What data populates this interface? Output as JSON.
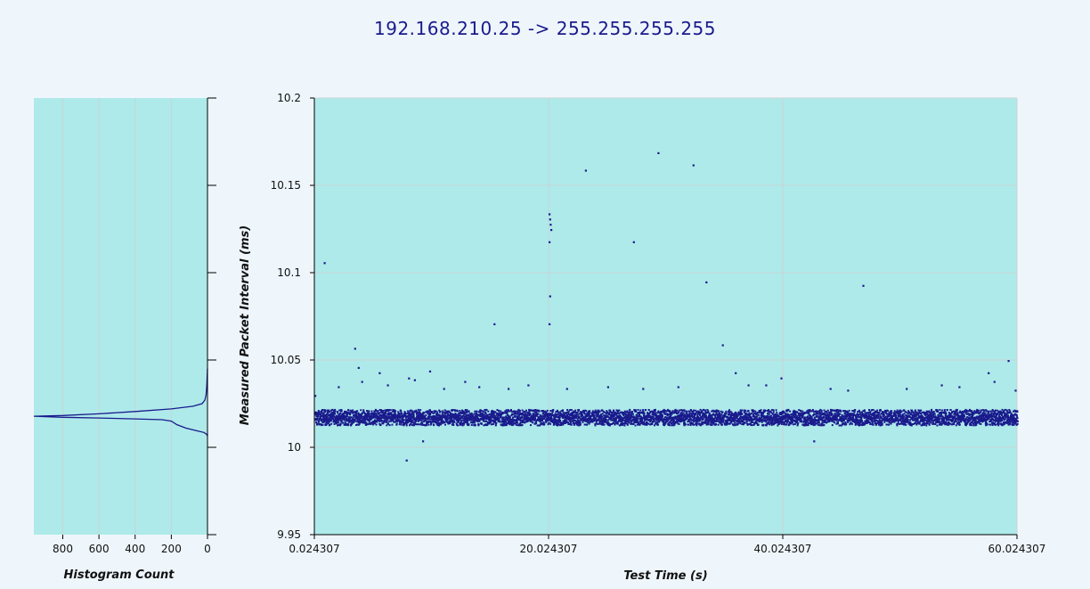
{
  "title": "192.168.210.25 -> 255.255.255.255",
  "colors": {
    "plot_bg": "#aeeaea",
    "series": "#1a1a8c",
    "grid": "#c8d4d4"
  },
  "chart_data": [
    {
      "type": "line",
      "name": "histogram",
      "xlabel": "Histogram Count",
      "x_ticks": [
        800,
        600,
        400,
        200,
        0
      ],
      "xlim": [
        0,
        960
      ],
      "x_reversed": true,
      "ylim": [
        9.95,
        10.2
      ],
      "curve": [
        [
          0,
          10.045
        ],
        [
          2,
          10.04
        ],
        [
          4,
          10.035
        ],
        [
          8,
          10.03
        ],
        [
          15,
          10.027
        ],
        [
          30,
          10.025
        ],
        [
          80,
          10.0235
        ],
        [
          200,
          10.022
        ],
        [
          400,
          10.0205
        ],
        [
          600,
          10.0192
        ],
        [
          800,
          10.0182
        ],
        [
          960,
          10.0178
        ],
        [
          800,
          10.0172
        ],
        [
          600,
          10.0168
        ],
        [
          400,
          10.0163
        ],
        [
          250,
          10.0158
        ],
        [
          200,
          10.015
        ],
        [
          170,
          10.013
        ],
        [
          120,
          10.011
        ],
        [
          60,
          10.0095
        ],
        [
          20,
          10.0085
        ],
        [
          5,
          10.0075
        ],
        [
          0,
          10.0065
        ]
      ]
    },
    {
      "type": "scatter",
      "name": "intervals",
      "xlabel": "Test Time (s)",
      "ylabel": "Measured Packet Interval (ms)",
      "xlim": [
        0.024307,
        60.024307
      ],
      "ylim": [
        9.95,
        10.2
      ],
      "x_ticks": [
        "0.024307",
        "20.024307",
        "40.024307",
        "60.024307"
      ],
      "y_ticks": [
        "9.95",
        "10",
        "10.05",
        "10.1",
        "10.15",
        "10.2"
      ],
      "band": {
        "center": 10.0175,
        "spread": 0.0045
      },
      "outliers": [
        [
          0.0,
          10.03
        ],
        [
          0.8,
          10.106
        ],
        [
          3.4,
          10.057
        ],
        [
          3.7,
          10.046
        ],
        [
          4.0,
          10.038
        ],
        [
          7.8,
          9.993
        ],
        [
          8.0,
          10.04
        ],
        [
          9.2,
          10.004
        ],
        [
          9.8,
          10.044
        ],
        [
          15.3,
          10.071
        ],
        [
          20.0,
          10.134
        ],
        [
          20.05,
          10.131
        ],
        [
          20.1,
          10.128
        ],
        [
          20.15,
          10.125
        ],
        [
          20.0,
          10.118
        ],
        [
          20.05,
          10.087
        ],
        [
          20.0,
          10.071
        ],
        [
          23.1,
          10.159
        ],
        [
          27.2,
          10.118
        ],
        [
          29.3,
          10.169
        ],
        [
          32.3,
          10.162
        ],
        [
          33.4,
          10.095
        ],
        [
          34.8,
          10.059
        ],
        [
          35.9,
          10.043
        ],
        [
          39.8,
          10.04
        ],
        [
          42.6,
          10.004
        ],
        [
          46.8,
          10.093
        ],
        [
          59.2,
          10.05
        ],
        [
          59.8,
          10.033
        ],
        [
          2.0,
          10.035
        ],
        [
          5.5,
          10.043
        ],
        [
          6.2,
          10.036
        ],
        [
          8.5,
          10.039
        ],
        [
          11.0,
          10.034
        ],
        [
          12.8,
          10.038
        ],
        [
          14.0,
          10.035
        ],
        [
          16.5,
          10.034
        ],
        [
          18.2,
          10.036
        ],
        [
          21.5,
          10.034
        ],
        [
          25.0,
          10.035
        ],
        [
          28.0,
          10.034
        ],
        [
          31.0,
          10.035
        ],
        [
          37.0,
          10.036
        ],
        [
          38.5,
          10.036
        ],
        [
          44.0,
          10.034
        ],
        [
          45.5,
          10.033
        ],
        [
          50.5,
          10.034
        ],
        [
          53.5,
          10.036
        ],
        [
          55.0,
          10.035
        ],
        [
          57.5,
          10.043
        ],
        [
          58.0,
          10.038
        ]
      ]
    }
  ]
}
